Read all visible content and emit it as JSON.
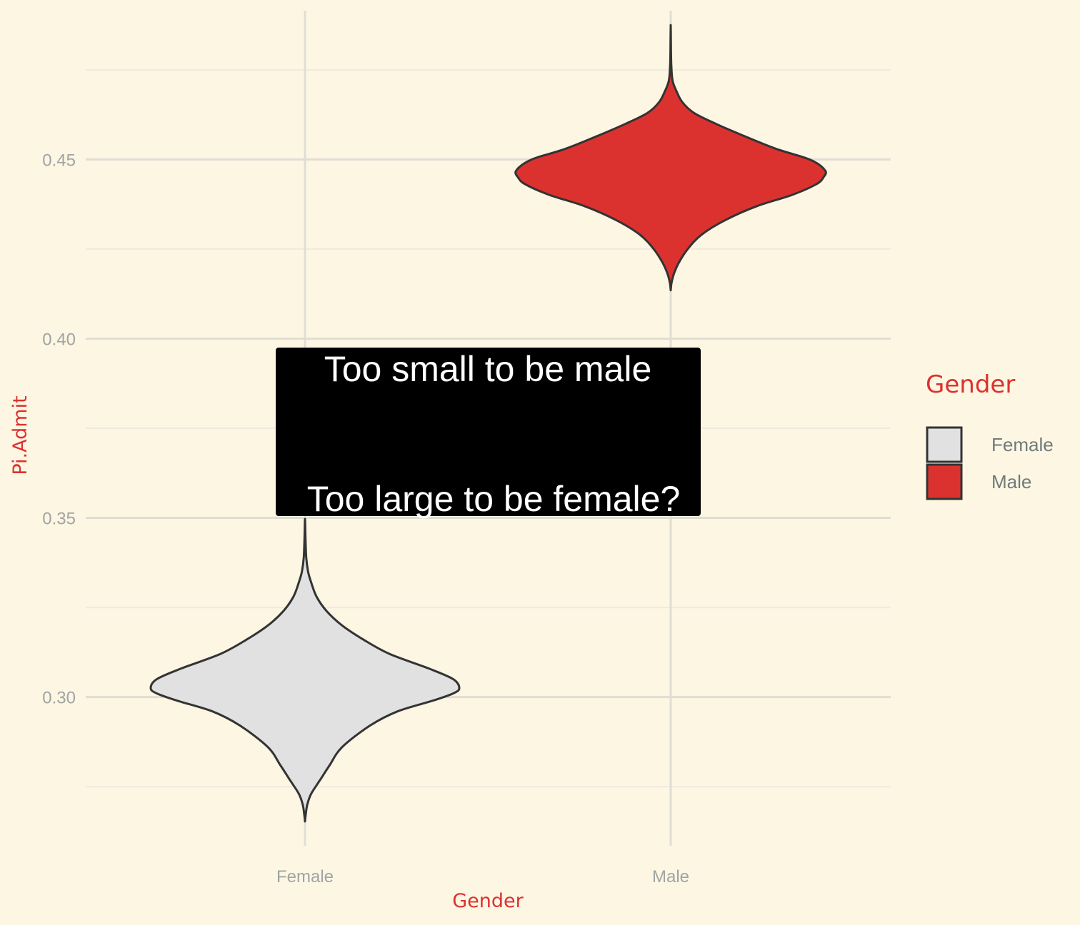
{
  "chart_data": {
    "type": "violin",
    "title": "",
    "xlabel": "Gender",
    "ylabel": "Pi.Admit",
    "categories": [
      "Female",
      "Male"
    ],
    "ylim": [
      0.2585,
      0.4915
    ],
    "yticks": [
      "0.30",
      "0.35",
      "0.40",
      "0.45"
    ],
    "ytick_values": [
      0.3,
      0.35,
      0.4,
      0.45
    ],
    "grid": true,
    "legend": {
      "title": "Gender",
      "position": "right",
      "entries": [
        {
          "label": "Female",
          "color": "#e1e1e1"
        },
        {
          "label": "Male",
          "color": "#dc322f"
        }
      ]
    },
    "series": [
      {
        "category": "Female",
        "color": "#e1e1e1",
        "min": 0.2653,
        "max": 0.3497,
        "profile": [
          [
            0.2653,
            0.0
          ],
          [
            0.267,
            0.004
          ],
          [
            0.27,
            0.015
          ],
          [
            0.273,
            0.04
          ],
          [
            0.277,
            0.1
          ],
          [
            0.281,
            0.16
          ],
          [
            0.286,
            0.24
          ],
          [
            0.292,
            0.42
          ],
          [
            0.296,
            0.6
          ],
          [
            0.299,
            0.83
          ],
          [
            0.301,
            0.96
          ],
          [
            0.3025,
            1.0
          ],
          [
            0.305,
            0.96
          ],
          [
            0.308,
            0.8
          ],
          [
            0.312,
            0.55
          ],
          [
            0.316,
            0.38
          ],
          [
            0.32,
            0.24
          ],
          [
            0.324,
            0.14
          ],
          [
            0.328,
            0.075
          ],
          [
            0.332,
            0.04
          ],
          [
            0.335,
            0.02
          ],
          [
            0.339,
            0.008
          ],
          [
            0.345,
            0.003
          ],
          [
            0.3497,
            0.0
          ]
        ]
      },
      {
        "category": "Male",
        "color": "#dc322f",
        "min": 0.4135,
        "max": 0.4875,
        "profile": [
          [
            0.4135,
            0.0
          ],
          [
            0.4155,
            0.005
          ],
          [
            0.418,
            0.02
          ],
          [
            0.421,
            0.05
          ],
          [
            0.425,
            0.11
          ],
          [
            0.429,
            0.2
          ],
          [
            0.433,
            0.35
          ],
          [
            0.437,
            0.56
          ],
          [
            0.44,
            0.78
          ],
          [
            0.443,
            0.94
          ],
          [
            0.445,
            0.99
          ],
          [
            0.447,
            1.0
          ],
          [
            0.45,
            0.9
          ],
          [
            0.453,
            0.68
          ],
          [
            0.457,
            0.45
          ],
          [
            0.46,
            0.29
          ],
          [
            0.463,
            0.15
          ],
          [
            0.466,
            0.075
          ],
          [
            0.469,
            0.038
          ],
          [
            0.472,
            0.012
          ],
          [
            0.476,
            0.004
          ],
          [
            0.48,
            0.002
          ],
          [
            0.4875,
            0.0
          ]
        ]
      }
    ],
    "annotation": {
      "line1": "Too small to be male",
      "line2": "Too large to be female?",
      "y_top": 0.3975,
      "y_bottom": 0.3505
    }
  }
}
